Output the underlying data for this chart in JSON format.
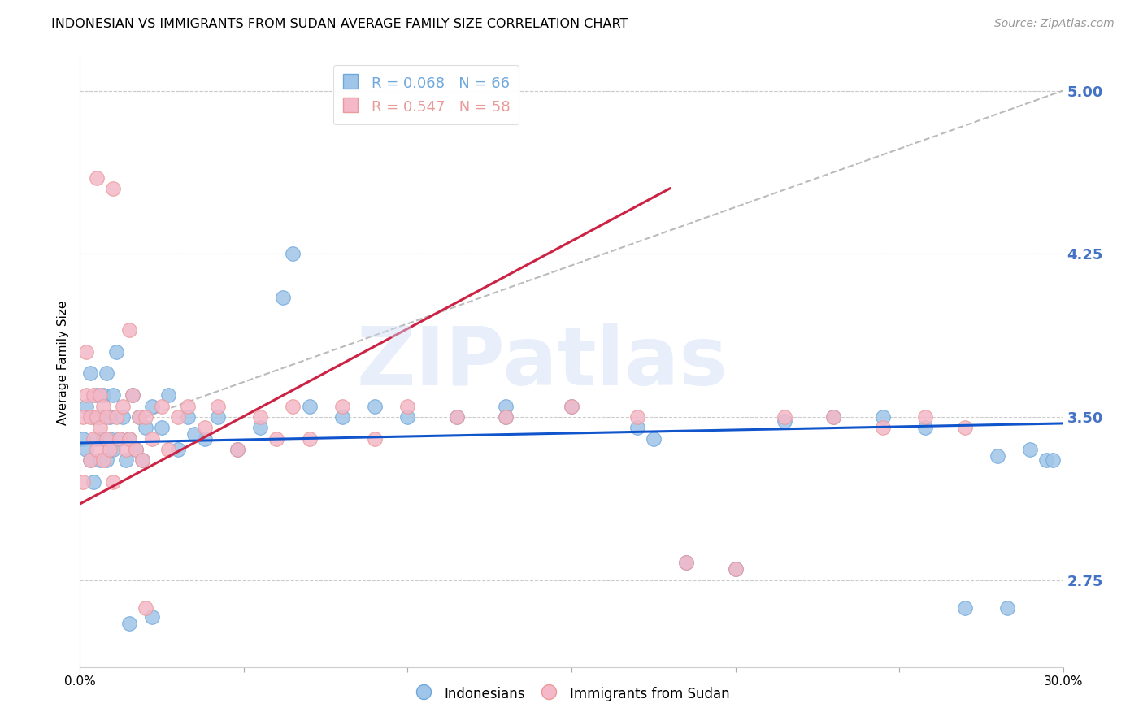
{
  "title": "INDONESIAN VS IMMIGRANTS FROM SUDAN AVERAGE FAMILY SIZE CORRELATION CHART",
  "source": "Source: ZipAtlas.com",
  "ylabel": "Average Family Size",
  "xlim": [
    0.0,
    0.3
  ],
  "ylim": [
    2.35,
    5.15
  ],
  "yticks": [
    2.75,
    3.5,
    4.25,
    5.0
  ],
  "ytick_labels": [
    "2.75",
    "3.50",
    "4.25",
    "5.00"
  ],
  "ytick_color": "#4472c4",
  "grid_color": "#cccccc",
  "watermark_text": "ZIPatlas",
  "legend_color1": "#6fa8dc",
  "legend_color2": "#ea9999",
  "line_color_blue": "#1155cc",
  "line_color_pink": "#cc2244",
  "diag_line_color": "#bbbbbb",
  "blue_scatter_color": "#9fc5e8",
  "pink_scatter_color": "#f4b8c8",
  "blue_x": [
    0.001,
    0.002,
    0.002,
    0.003,
    0.003,
    0.004,
    0.004,
    0.005,
    0.005,
    0.006,
    0.006,
    0.007,
    0.007,
    0.008,
    0.008,
    0.009,
    0.009,
    0.01,
    0.01,
    0.011,
    0.012,
    0.013,
    0.014,
    0.015,
    0.016,
    0.017,
    0.018,
    0.019,
    0.02,
    0.022,
    0.025,
    0.027,
    0.03,
    0.033,
    0.038,
    0.042,
    0.048,
    0.055,
    0.062,
    0.07,
    0.08,
    0.09,
    0.1,
    0.115,
    0.13,
    0.15,
    0.17,
    0.185,
    0.2,
    0.215,
    0.23,
    0.245,
    0.258,
    0.27,
    0.283,
    0.29,
    0.295,
    0.297,
    0.015,
    0.022,
    0.035,
    0.065,
    0.13,
    0.175,
    0.28
  ],
  "blue_y": [
    3.4,
    3.55,
    3.35,
    3.7,
    3.3,
    3.5,
    3.2,
    3.6,
    3.4,
    3.5,
    3.3,
    3.6,
    3.4,
    3.7,
    3.3,
    3.5,
    3.4,
    3.35,
    3.6,
    3.8,
    3.4,
    3.5,
    3.3,
    3.4,
    3.6,
    3.35,
    3.5,
    3.3,
    3.45,
    3.55,
    3.45,
    3.6,
    3.35,
    3.5,
    3.4,
    3.5,
    3.35,
    3.45,
    4.05,
    3.55,
    3.5,
    3.55,
    3.5,
    3.5,
    3.55,
    3.55,
    3.45,
    2.83,
    2.8,
    3.48,
    3.5,
    3.5,
    3.45,
    2.62,
    2.62,
    3.35,
    3.3,
    3.3,
    2.55,
    2.58,
    3.42,
    4.25,
    3.5,
    3.4,
    3.32
  ],
  "pink_x": [
    0.001,
    0.001,
    0.002,
    0.002,
    0.003,
    0.003,
    0.004,
    0.004,
    0.005,
    0.005,
    0.006,
    0.006,
    0.007,
    0.007,
    0.008,
    0.008,
    0.009,
    0.01,
    0.011,
    0.012,
    0.013,
    0.014,
    0.015,
    0.016,
    0.017,
    0.018,
    0.019,
    0.02,
    0.022,
    0.025,
    0.027,
    0.03,
    0.033,
    0.038,
    0.042,
    0.048,
    0.055,
    0.06,
    0.065,
    0.07,
    0.08,
    0.09,
    0.1,
    0.115,
    0.13,
    0.15,
    0.17,
    0.185,
    0.2,
    0.215,
    0.23,
    0.245,
    0.258,
    0.27,
    0.005,
    0.01,
    0.015,
    0.02
  ],
  "pink_y": [
    3.5,
    3.2,
    3.8,
    3.6,
    3.5,
    3.3,
    3.6,
    3.4,
    3.5,
    3.35,
    3.6,
    3.45,
    3.55,
    3.3,
    3.5,
    3.4,
    3.35,
    3.2,
    3.5,
    3.4,
    3.55,
    3.35,
    3.4,
    3.6,
    3.35,
    3.5,
    3.3,
    3.5,
    3.4,
    3.55,
    3.35,
    3.5,
    3.55,
    3.45,
    3.55,
    3.35,
    3.5,
    3.4,
    3.55,
    3.4,
    3.55,
    3.4,
    3.55,
    3.5,
    3.5,
    3.55,
    3.5,
    2.83,
    2.8,
    3.5,
    3.5,
    3.45,
    3.5,
    3.45,
    4.6,
    4.55,
    3.9,
    2.62
  ],
  "blue_line": [
    0.0,
    0.3,
    3.38,
    3.47
  ],
  "pink_line": [
    0.0,
    0.18,
    3.1,
    4.55
  ],
  "diag_line": [
    0.02,
    0.3,
    3.5,
    5.0
  ]
}
